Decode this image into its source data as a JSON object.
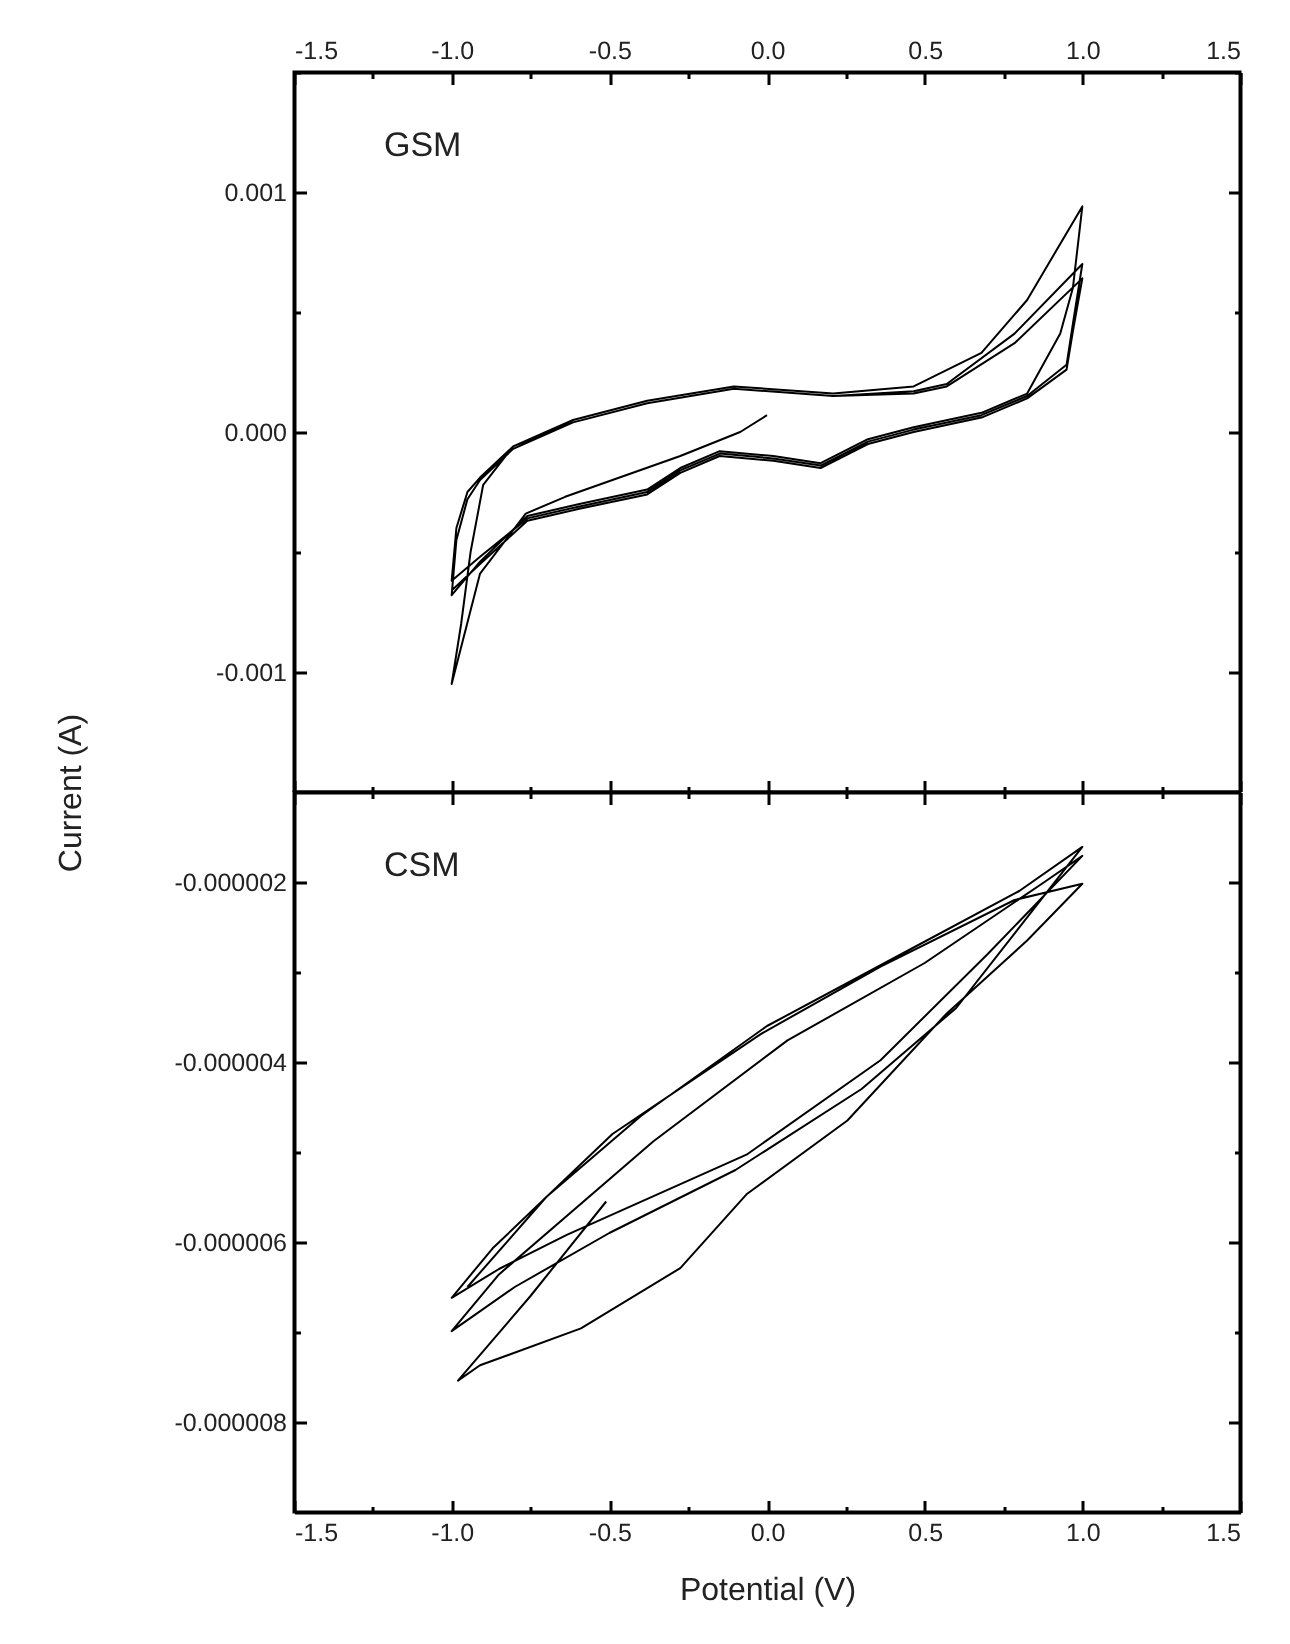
{
  "chart_data": [
    {
      "type": "line",
      "annotations": [
        "GSM"
      ],
      "xlim": [
        -1.5,
        1.5
      ],
      "xticks": [
        -1.5,
        {
          "value": -1.25,
          "label": null
        },
        {
          "value": -1,
          "label": "-1.0"
        },
        {
          "value": -0.75,
          "label": null
        },
        -0.5,
        {
          "value": -0.25,
          "label": null
        },
        {
          "value": 0,
          "label": "0.0"
        },
        {
          "value": 0.25,
          "label": null
        },
        0.5,
        {
          "value": 0.75,
          "label": null
        },
        {
          "value": 1,
          "label": "1.0"
        },
        {
          "value": 1.25,
          "label": null
        },
        1.5
      ],
      "ylim": [
        -0.0015,
        0.0015
      ],
      "yticks": [
        {
          "value": -0.0015,
          "label": null
        },
        -0.001,
        {
          "value": -0.0005,
          "label": null
        },
        {
          "value": 0,
          "label": "0.000"
        },
        {
          "value": 0.0005,
          "label": null
        },
        0.001,
        {
          "value": 0.0015,
          "label": null
        }
      ],
      "series": [
        {
          "color": "#000000",
          "x": [
            0.0,
            -0.085,
            -0.275,
            -0.49,
            -0.64,
            -0.765,
            -0.91,
            -1.0,
            -0.97,
            -0.94,
            -0.9,
            -0.805,
            -0.615,
            -0.38,
            -0.105,
            0.21,
            0.465,
            0.68,
            0.825,
            1.0,
            0.97,
            0.93,
            0.825,
            0.68,
            0.465,
            0.32,
            0.17,
            0.02,
            -0.15,
            -0.275,
            -0.38,
            -0.595,
            -0.76,
            -0.91,
            -1.0,
            -0.985,
            -0.95,
            -0.91,
            -0.805,
            -0.615,
            -0.38,
            -0.105,
            0.21,
            0.465,
            0.57,
            0.785,
            1.0,
            0.97,
            0.95,
            0.825,
            0.68,
            0.465,
            0.32,
            0.17,
            0.02,
            -0.15,
            -0.275,
            -0.38,
            -0.595,
            -0.76,
            -0.91,
            -1.0,
            -0.985,
            -0.95,
            -0.91,
            -0.805,
            -0.615,
            -0.38,
            -0.105,
            0.21,
            0.465,
            0.57,
            0.785,
            1.0,
            0.97,
            0.95,
            0.825,
            0.68,
            0.465,
            0.32,
            0.17,
            0.02,
            -0.15,
            -0.275,
            -0.38,
            -0.595,
            -0.76,
            -0.91,
            -1.0
          ],
          "values": [
            7e-05,
            0,
            -0.0001,
            -0.0002,
            -0.00027,
            -0.00034,
            -0.00059,
            -0.00105,
            -0.0008,
            -0.0005,
            -0.00022,
            -6e-05,
            5e-05,
            0.00013,
            0.00019,
            0.00016,
            0.00019,
            0.00033,
            0.00055,
            0.00094,
            0.0006,
            0.00041,
            0.00016,
            8e-05,
            2e-05,
            -3e-05,
            -0.00013,
            -0.0001,
            -8e-05,
            -0.00015,
            -0.00024,
            -0.0003,
            -0.00035,
            -0.00054,
            -0.00068,
            -0.00045,
            -0.00028,
            -0.0002,
            -7e-05,
            4e-05,
            0.00012,
            0.00018,
            0.00015,
            0.00017,
            0.0002,
            0.00041,
            0.0007,
            0.00045,
            0.00028,
            0.00015,
            7e-05,
            1e-05,
            -4e-05,
            -0.00014,
            -0.00011,
            -9e-05,
            -0.00016,
            -0.00025,
            -0.00031,
            -0.00036,
            -0.00052,
            -0.00062,
            -0.0004,
            -0.00025,
            -0.00019,
            -6e-05,
            4e-05,
            0.00012,
            0.00018,
            0.00015,
            0.00016,
            0.00019,
            0.00037,
            0.00064,
            0.00042,
            0.00026,
            0.00014,
            6e-05,
            0,
            -5e-05,
            -0.00015,
            -0.00012,
            -0.0001,
            -0.00017,
            -0.00026,
            -0.00032,
            -0.00037,
            -0.00055,
            -0.00066
          ]
        }
      ]
    },
    {
      "type": "line",
      "annotations": [
        "CSM"
      ],
      "xlabel": "Potential (V)",
      "ylabel": "Current (A)",
      "xlim": [
        -1.5,
        1.5
      ],
      "xticks": [
        -1.5,
        {
          "value": -1.25,
          "label": null
        },
        {
          "value": -1,
          "label": "-1.0"
        },
        {
          "value": -0.75,
          "label": null
        },
        -0.5,
        {
          "value": -0.25,
          "label": null
        },
        {
          "value": 0,
          "label": "0.0"
        },
        {
          "value": 0.25,
          "label": null
        },
        0.5,
        {
          "value": 0.75,
          "label": null
        },
        {
          "value": 1,
          "label": "1.0"
        },
        {
          "value": 1.25,
          "label": null
        },
        1.5
      ],
      "ylim": [
        -9e-06,
        -1e-06
      ],
      "yticks": [
        {
          "value": -8e-06,
          "label": "-0.000008"
        },
        {
          "value": -7e-06,
          "label": null
        },
        {
          "value": -6e-06,
          "label": "-0.000006"
        },
        {
          "value": -5e-06,
          "label": null
        },
        {
          "value": -4e-06,
          "label": "-0.000004"
        },
        {
          "value": -3e-06,
          "label": null
        },
        {
          "value": -2e-06,
          "label": "-0.000002"
        }
      ],
      "series": [
        {
          "color": "#000000",
          "x": [
            -0.51,
            -0.75,
            -0.98,
            -0.91,
            -0.59,
            -0.275,
            -0.065,
            0.255,
            0.57,
            0.825,
            1.0,
            0.785,
            0.36,
            -0.02,
            -0.49,
            -0.87,
            -1.0,
            -0.85,
            -0.635,
            -0.065,
            0.36,
            0.7,
            1.0,
            0.88,
            0.5,
            0.065,
            -0.36,
            -0.85,
            -1.0,
            -0.8,
            -0.5,
            -0.1,
            0.3,
            0.6,
            1.0,
            0.8,
            0.4,
            0.0,
            -0.4,
            -0.7,
            -0.95
          ],
          "values": [
            -5.55e-06,
            -6.6e-06,
            -7.54e-06,
            -7.37e-06,
            -6.96e-06,
            -6.29e-06,
            -5.47e-06,
            -4.65e-06,
            -3.46e-06,
            -2.65e-06,
            -2.02e-06,
            -2.2e-06,
            -2.94e-06,
            -3.69e-06,
            -4.8e-06,
            -6.07e-06,
            -6.62e-06,
            -6.3e-06,
            -5.92e-06,
            -5.03e-06,
            -3.98e-06,
            -2.8e-06,
            -1.71e-06,
            -2e-06,
            -2.9e-06,
            -3.76e-06,
            -4.88e-06,
            -6.36e-06,
            -6.99e-06,
            -6.5e-06,
            -5.9e-06,
            -5.2e-06,
            -4.3e-06,
            -3.4e-06,
            -1.61e-06,
            -2.1e-06,
            -2.85e-06,
            -3.6e-06,
            -4.6e-06,
            -5.5e-06,
            -6.5e-06
          ]
        }
      ]
    }
  ]
}
